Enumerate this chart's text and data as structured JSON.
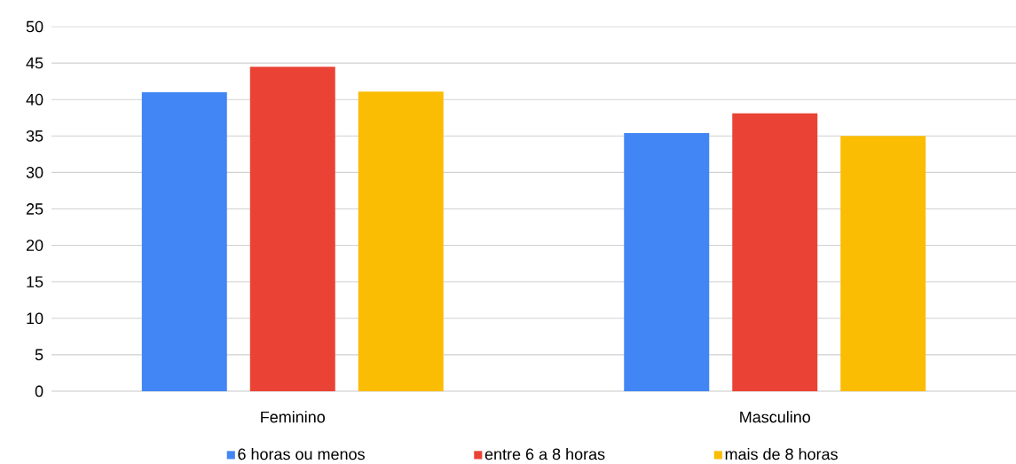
{
  "chart_data": {
    "type": "bar",
    "categories": [
      "Feminino",
      "Masculino"
    ],
    "series": [
      {
        "name": "6 horas ou menos",
        "color": "#4285f4",
        "values": [
          41,
          35.4
        ]
      },
      {
        "name": "entre 6 a 8 horas",
        "color": "#ea4335",
        "values": [
          44.5,
          38.1
        ]
      },
      {
        "name": "mais de 8 horas",
        "color": "#fbbc04",
        "values": [
          41.1,
          35
        ]
      }
    ],
    "ylim": [
      0,
      50
    ],
    "yticks": [
      0,
      5,
      10,
      15,
      20,
      25,
      30,
      35,
      40,
      45,
      50
    ],
    "grid": "y",
    "legend": "bottom"
  }
}
